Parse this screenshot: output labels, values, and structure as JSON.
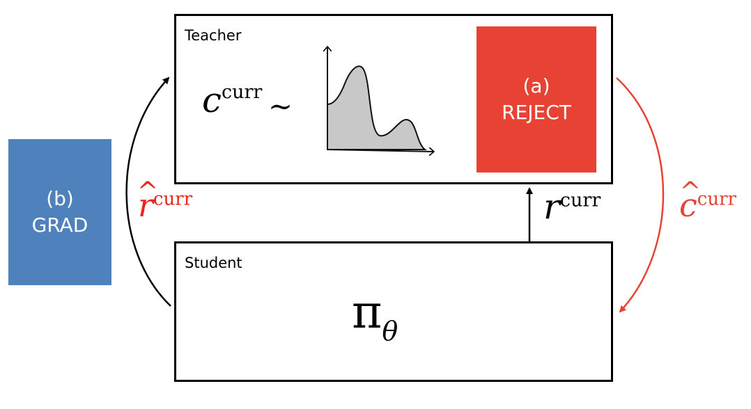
{
  "teacher": {
    "label": "Teacher",
    "formula_symbol": "c",
    "formula_superscript": "curr",
    "formula_relation": "∼"
  },
  "reject_panel": {
    "line1": "(a)",
    "line2": "REJECT",
    "color": "#E84234"
  },
  "grad_panel": {
    "line1": "(b)",
    "line2": "GRAD",
    "color": "#4F81BD"
  },
  "student": {
    "label": "Student",
    "policy_symbol": "π",
    "policy_subscript": "θ"
  },
  "arrows": {
    "up": {
      "symbol": "r",
      "superscript": "curr",
      "color": "#000000"
    },
    "left": {
      "symbol": "r",
      "superscript": "curr",
      "label_color": "#E8261D",
      "arrow_color": "#000000"
    },
    "right": {
      "symbol": "c",
      "superscript": "curr",
      "color": "#E84234"
    }
  }
}
